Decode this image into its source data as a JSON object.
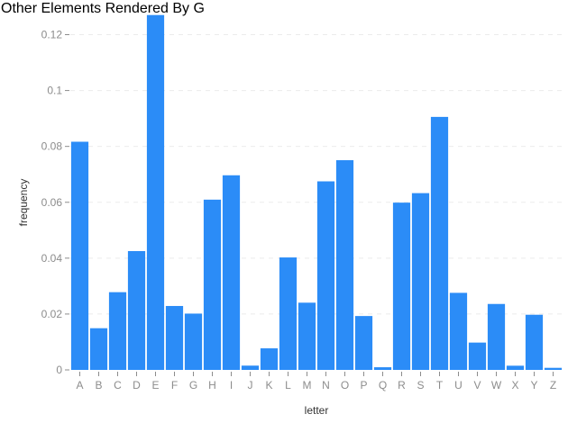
{
  "chart_data": {
    "type": "bar",
    "title": "Other Elements Rendered By G",
    "xlabel": "letter",
    "ylabel": "frequency",
    "ylim": [
      0,
      0.127
    ],
    "yticks": [
      0,
      0.02,
      0.04,
      0.06,
      0.08,
      0.1,
      0.12
    ],
    "ytick_labels": [
      "0",
      "0.02",
      "0.04",
      "0.06",
      "0.08",
      "0.1",
      "0.12"
    ],
    "grid": "horizontal dashed",
    "categories": [
      "A",
      "B",
      "C",
      "D",
      "E",
      "F",
      "G",
      "H",
      "I",
      "J",
      "K",
      "L",
      "M",
      "N",
      "O",
      "P",
      "Q",
      "R",
      "S",
      "T",
      "U",
      "V",
      "W",
      "X",
      "Y",
      "Z"
    ],
    "values": [
      0.08167,
      0.01492,
      0.02782,
      0.04253,
      0.12702,
      0.02288,
      0.02015,
      0.06094,
      0.06966,
      0.00153,
      0.00772,
      0.04025,
      0.02406,
      0.06749,
      0.07507,
      0.01929,
      0.00095,
      0.05987,
      0.06327,
      0.09056,
      0.02758,
      0.00978,
      0.0236,
      0.0015,
      0.01974,
      0.00074
    ],
    "bar_color": "#2b8cf7"
  }
}
